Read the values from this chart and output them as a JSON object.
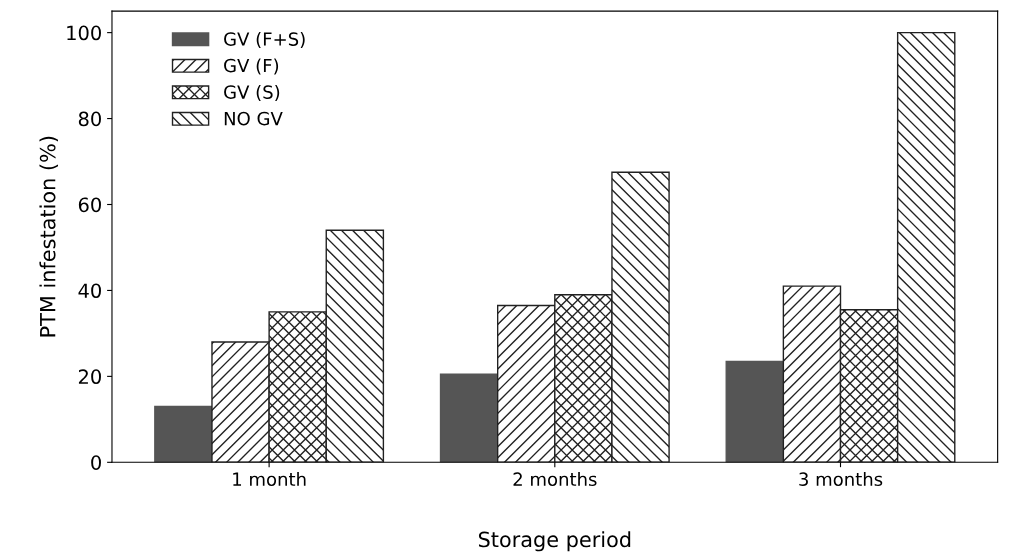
{
  "chart_data": {
    "type": "bar",
    "xlabel": "Storage period",
    "ylabel": "PTM infestation (%)",
    "categories": [
      "1 month",
      "2 months",
      "3 months"
    ],
    "series": [
      {
        "name": "GV (F+S)",
        "color": "#555555",
        "values": [
          13,
          20.5,
          23.5
        ]
      },
      {
        "name": "GV (F)",
        "color": "#222222",
        "values": [
          28,
          36.5,
          41
        ]
      },
      {
        "name": "GV (S)",
        "color": "#222222",
        "values": [
          35,
          39,
          35.5
        ]
      },
      {
        "name": "NO GV",
        "color": "#222222",
        "values": [
          54,
          67.5,
          100
        ]
      }
    ],
    "ylim": [
      0,
      105
    ],
    "yticks": [
      0,
      20,
      40,
      60,
      80,
      100
    ],
    "grid": false,
    "legend": "top left"
  }
}
